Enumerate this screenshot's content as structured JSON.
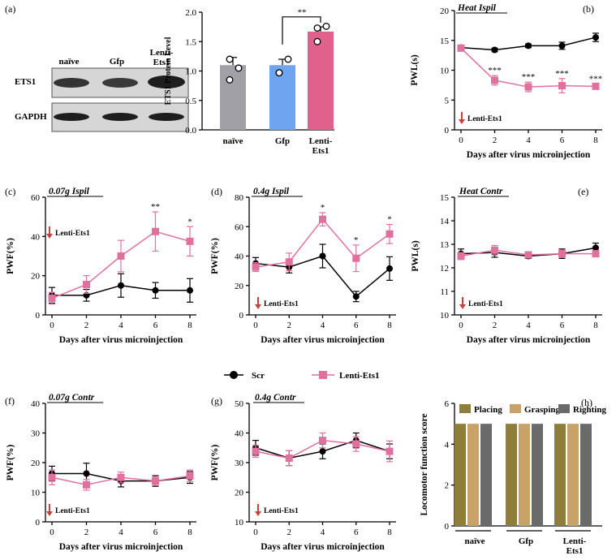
{
  "colors": {
    "scr": "#000000",
    "lenti": "#e0719e",
    "naive": "#a0a0a6",
    "gfp": "#6fa4f0",
    "lentiBar": "#e0628c",
    "placing": "#8f7d3a",
    "grasping": "#c9a26a",
    "righting": "#6a6a6a",
    "arrow": "#c9403c"
  },
  "blot": {
    "panel_label": "(a)",
    "lanes": [
      "naïve",
      "Gfp",
      "Lenti-\nEts1"
    ],
    "proteins": [
      "ETS1",
      "GAPDH"
    ]
  },
  "legend": {
    "scr": "Scr",
    "lenti": "Lenti-Ets1"
  },
  "chart_data": [
    {
      "id": "a",
      "type": "bar",
      "ylabel": "ETS1 Protein Level",
      "ylim": [
        0,
        2.0
      ],
      "yticks": [
        "0.0",
        "0.5",
        "1.0",
        "1.5",
        "2.0"
      ],
      "categories": [
        "naïve",
        "Gfp",
        "Lenti-\nEts1"
      ],
      "values": [
        1.1,
        1.1,
        1.67
      ],
      "errors": [
        0.13,
        0.1,
        0.08
      ],
      "points": [
        [
          1.2,
          1.05,
          0.85
        ],
        [
          0.97,
          1.2,
          0.97
        ],
        [
          1.5,
          1.76,
          1.73
        ]
      ],
      "signif": "**"
    },
    {
      "id": "b",
      "type": "line",
      "panel_label": "(b)",
      "title": "Heat Ispil",
      "ylabel": "PWL(s)",
      "xlabel": "Days after virus microinjection",
      "ylim": [
        0,
        20
      ],
      "yticks": [
        "0",
        "5",
        "10",
        "15",
        "20"
      ],
      "x": [
        0,
        2,
        4,
        6,
        8
      ],
      "xticks": [
        "0",
        "2",
        "4",
        "6",
        "8"
      ],
      "series": [
        {
          "name": "Scr",
          "values": [
            13.8,
            13.4,
            14.1,
            14.1,
            15.5
          ],
          "errors": [
            0.3,
            0.3,
            0.3,
            0.6,
            0.7
          ]
        },
        {
          "name": "Lenti-Ets1",
          "values": [
            13.7,
            8.3,
            7.2,
            7.4,
            7.3
          ],
          "errors": [
            0.3,
            0.8,
            0.8,
            1.2,
            0.4
          ]
        }
      ],
      "stars": [
        "",
        "***",
        "***",
        "***",
        "***"
      ],
      "arrow_label": "Lenti-Ets1"
    },
    {
      "id": "c",
      "type": "line",
      "panel_label": "(c)",
      "title": "0.07g Ispil",
      "ylabel": "PWF(%)",
      "xlabel": "Days after virus microinjection",
      "ylim": [
        0,
        60
      ],
      "yticks": [
        "0",
        "20",
        "40",
        "60"
      ],
      "x": [
        0,
        2,
        4,
        6,
        8
      ],
      "xticks": [
        "0",
        "2",
        "4",
        "6",
        "8"
      ],
      "series": [
        {
          "name": "Scr",
          "values": [
            10,
            10,
            15,
            12.5,
            12.5
          ],
          "errors": [
            4,
            3,
            6,
            4,
            6
          ]
        },
        {
          "name": "Lenti-Ets1",
          "values": [
            8.5,
            15.5,
            30,
            42.5,
            37.5
          ],
          "errors": [
            3,
            4.5,
            8,
            10,
            7.5
          ]
        }
      ],
      "stars": [
        "",
        "",
        "",
        "**",
        "*"
      ],
      "arrow_label": "Lenti-Ets1"
    },
    {
      "id": "d",
      "type": "line",
      "panel_label": "(d)",
      "title": "0.4g Ispil",
      "ylabel": "PWF(%)",
      "xlabel": "Days after virus microinjection",
      "ylim": [
        0,
        80
      ],
      "yticks": [
        "0",
        "20",
        "40",
        "60",
        "80"
      ],
      "x": [
        0,
        2,
        4,
        6,
        8
      ],
      "xticks": [
        "0",
        "2",
        "4",
        "6",
        "8"
      ],
      "series": [
        {
          "name": "Scr",
          "values": [
            35,
            32.5,
            40,
            12.5,
            31.5
          ],
          "errors": [
            4,
            4,
            8,
            3.5,
            8
          ]
        },
        {
          "name": "Lenti-Ets1",
          "values": [
            32.5,
            36,
            65,
            38.5,
            55
          ],
          "errors": [
            3,
            6,
            4.5,
            9,
            6.5
          ]
        }
      ],
      "stars": [
        "",
        "",
        "*",
        "*",
        "*"
      ],
      "arrow_label": "Lenti-Ets1"
    },
    {
      "id": "e",
      "type": "line",
      "panel_label": "(e)",
      "title": "Heat Contr",
      "ylabel": "PWL(s)",
      "xlabel": "Days after virus microinjection",
      "ylim": [
        10,
        15
      ],
      "yticks": [
        "10",
        "11",
        "12",
        "13",
        "14",
        "15"
      ],
      "x": [
        0,
        2,
        4,
        6,
        8
      ],
      "xticks": [
        "0",
        "2",
        "4",
        "6",
        "8"
      ],
      "series": [
        {
          "name": "Scr",
          "values": [
            12.6,
            12.65,
            12.5,
            12.6,
            12.85
          ],
          "errors": [
            0.2,
            0.2,
            0.1,
            0.2,
            0.2
          ]
        },
        {
          "name": "Lenti-Ets1",
          "values": [
            12.5,
            12.75,
            12.55,
            12.6,
            12.6
          ],
          "errors": [
            0.15,
            0.2,
            0.1,
            0.15,
            0.1
          ]
        }
      ],
      "stars": [
        "",
        "",
        "",
        "",
        ""
      ],
      "arrow_label": "Lenti-Ets1"
    },
    {
      "id": "f",
      "type": "line",
      "panel_label": "(f)",
      "title": "0.07g Contr",
      "ylabel": "PWF(%)",
      "xlabel": "Days after virus microinjection",
      "ylim": [
        0,
        40
      ],
      "yticks": [
        "0",
        "10",
        "20",
        "30",
        "40"
      ],
      "x": [
        0,
        2,
        4,
        6,
        8
      ],
      "xticks": [
        "0",
        "2",
        "4",
        "6",
        "8"
      ],
      "series": [
        {
          "name": "Scr",
          "values": [
            16.3,
            16.3,
            13.8,
            13.8,
            15
          ],
          "errors": [
            2.5,
            3.5,
            2,
            1.8,
            2
          ]
        },
        {
          "name": "Lenti-Ets1",
          "values": [
            15,
            12.5,
            15,
            13.8,
            15.5
          ],
          "errors": [
            2.5,
            1.8,
            1.8,
            1.5,
            2
          ]
        }
      ],
      "stars": [
        "",
        "",
        "",
        "",
        ""
      ],
      "arrow_label": "Lenti-Ets1"
    },
    {
      "id": "g",
      "type": "line",
      "panel_label": "(g)",
      "title": "0.4g Contr",
      "ylabel": "PWF(%)",
      "xlabel": "Days after virus microinjection",
      "ylim": [
        10,
        50
      ],
      "yticks": [
        "10",
        "20",
        "30",
        "40",
        "50"
      ],
      "x": [
        0,
        2,
        4,
        6,
        8
      ],
      "xticks": [
        "0",
        "2",
        "4",
        "6",
        "8"
      ],
      "series": [
        {
          "name": "Scr",
          "values": [
            35,
            31.5,
            33.8,
            37.5,
            33.8
          ],
          "errors": [
            2.5,
            2.5,
            2.5,
            2.5,
            2.5
          ]
        },
        {
          "name": "Lenti-Ets1",
          "values": [
            33.8,
            31.5,
            37.5,
            36.3,
            33.8
          ],
          "errors": [
            2,
            2.5,
            2.5,
            2.5,
            3.5
          ]
        }
      ],
      "stars": [
        "",
        "",
        "",
        "",
        ""
      ],
      "arrow_label": "Lenti-Ets1"
    },
    {
      "id": "h",
      "type": "bar",
      "panel_label": "(h)",
      "ylabel": "Locomotor function score",
      "ylim": [
        0,
        6
      ],
      "yticks": [
        "0",
        "2",
        "4",
        "6"
      ],
      "categories": [
        "naïve",
        "Gfp",
        "Lenti-\nEts1"
      ],
      "series": [
        {
          "name": "Placing",
          "values": [
            5,
            5,
            5
          ]
        },
        {
          "name": "Grasping",
          "values": [
            5,
            5,
            5
          ]
        },
        {
          "name": "Righting",
          "values": [
            5,
            5,
            5
          ]
        }
      ]
    }
  ]
}
